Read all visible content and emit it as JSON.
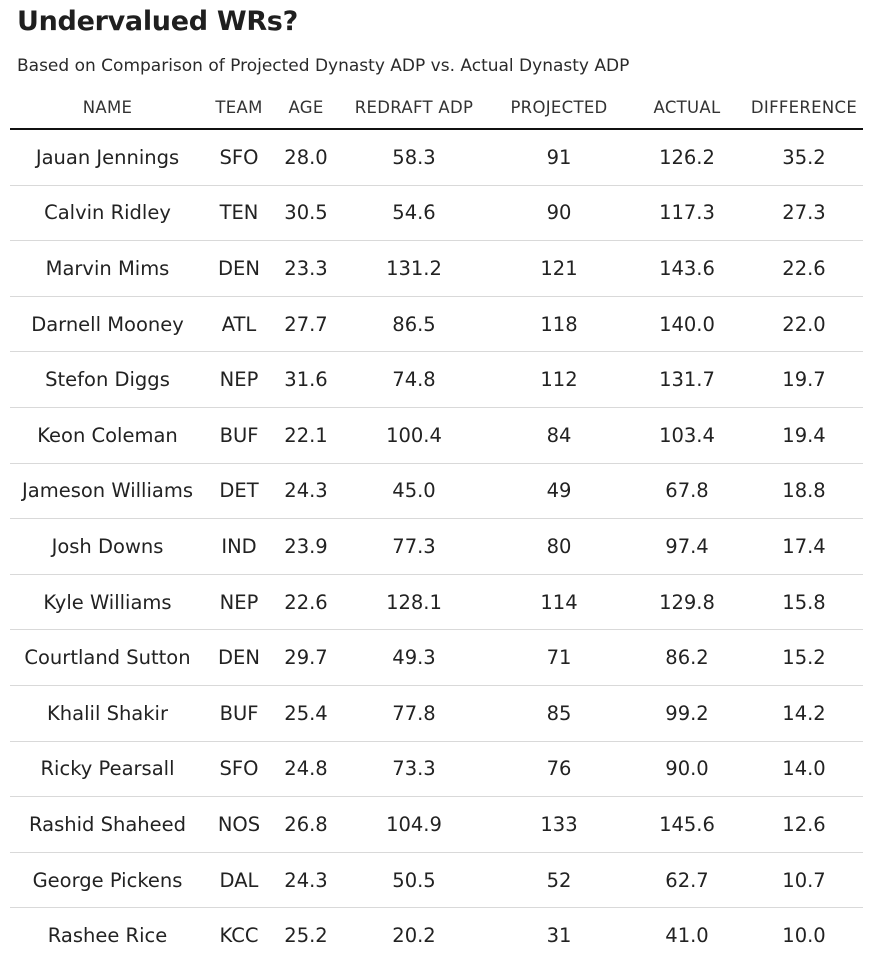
{
  "title": "Undervalued WRs?",
  "subtitle": "Based on Comparison of Projected Dynasty ADP vs. Actual Dynasty ADP",
  "chart_data": {
    "type": "table",
    "title": "Undervalued WRs?",
    "subtitle": "Based on Comparison of Projected Dynasty ADP vs. Actual Dynasty ADP",
    "columns": [
      "NAME",
      "TEAM",
      "AGE",
      "REDRAFT ADP",
      "PROJECTED",
      "ACTUAL",
      "DIFFERENCE"
    ],
    "rows": [
      [
        "Jauan Jennings",
        "SFO",
        "28.0",
        "58.3",
        "91",
        "126.2",
        "35.2"
      ],
      [
        "Calvin Ridley",
        "TEN",
        "30.5",
        "54.6",
        "90",
        "117.3",
        "27.3"
      ],
      [
        "Marvin Mims",
        "DEN",
        "23.3",
        "131.2",
        "121",
        "143.6",
        "22.6"
      ],
      [
        "Darnell Mooney",
        "ATL",
        "27.7",
        "86.5",
        "118",
        "140.0",
        "22.0"
      ],
      [
        "Stefon Diggs",
        "NEP",
        "31.6",
        "74.8",
        "112",
        "131.7",
        "19.7"
      ],
      [
        "Keon Coleman",
        "BUF",
        "22.1",
        "100.4",
        "84",
        "103.4",
        "19.4"
      ],
      [
        "Jameson Williams",
        "DET",
        "24.3",
        "45.0",
        "49",
        "67.8",
        "18.8"
      ],
      [
        "Josh Downs",
        "IND",
        "23.9",
        "77.3",
        "80",
        "97.4",
        "17.4"
      ],
      [
        "Kyle Williams",
        "NEP",
        "22.6",
        "128.1",
        "114",
        "129.8",
        "15.8"
      ],
      [
        "Courtland Sutton",
        "DEN",
        "29.7",
        "49.3",
        "71",
        "86.2",
        "15.2"
      ],
      [
        "Khalil Shakir",
        "BUF",
        "25.4",
        "77.8",
        "85",
        "99.2",
        "14.2"
      ],
      [
        "Ricky Pearsall",
        "SFO",
        "24.8",
        "73.3",
        "76",
        "90.0",
        "14.0"
      ],
      [
        "Rashid Shaheed",
        "NOS",
        "26.8",
        "104.9",
        "133",
        "145.6",
        "12.6"
      ],
      [
        "George Pickens",
        "DAL",
        "24.3",
        "50.5",
        "52",
        "62.7",
        "10.7"
      ],
      [
        "Rashee Rice",
        "KCC",
        "25.2",
        "20.2",
        "31",
        "41.0",
        "10.0"
      ]
    ]
  }
}
